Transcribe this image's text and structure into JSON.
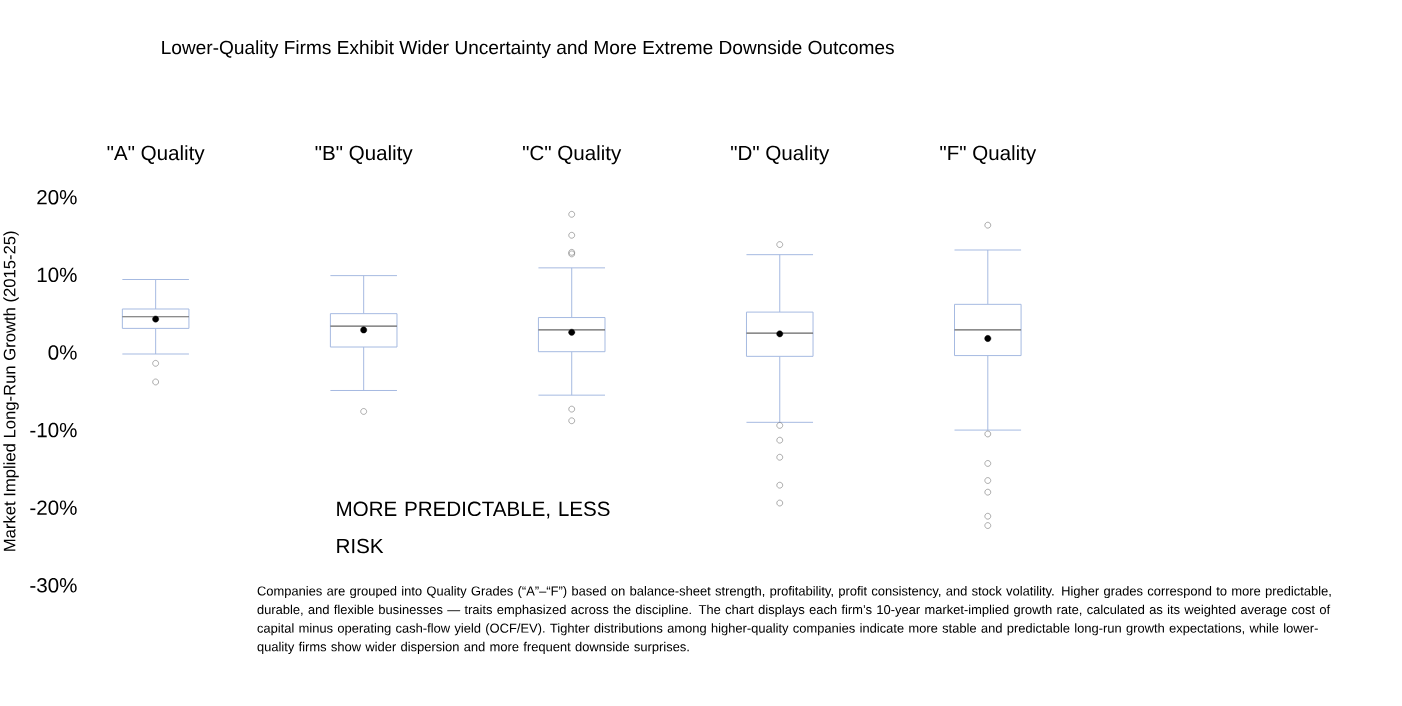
{
  "chart_data": {
    "type": "box",
    "title": "Lower-Quality Firms Exhibit Wider Uncertainty and More Extreme Downside Outcomes",
    "ylabel": "Market Implied Long-Run Growth (2015-25)",
    "categories": [
      "\"A\" Quality",
      "\"B\" Quality",
      "\"C\" Quality",
      "\"D\" Quality",
      "\"F\" Quality"
    ],
    "color": "#a4b9e0",
    "boxes": [
      {
        "low": -0.2,
        "q1": 3.1,
        "median": 4.6,
        "q3": 5.6,
        "high": 9.4,
        "mean": 4.3,
        "outliers": [
          -1.4,
          -3.8
        ]
      },
      {
        "low": -4.9,
        "q1": 0.7,
        "median": 3.4,
        "q3": 5.0,
        "high": 9.9,
        "mean": 2.9,
        "outliers": [
          -7.6
        ]
      },
      {
        "low": -5.5,
        "q1": 0.1,
        "median": 2.9,
        "q3": 4.5,
        "high": 10.9,
        "mean": 2.6,
        "outliers": [
          17.8,
          15.1,
          12.9,
          12.7,
          -7.3,
          -8.8
        ]
      },
      {
        "low": -9.0,
        "q1": -0.5,
        "median": 2.5,
        "q3": 5.2,
        "high": 12.6,
        "mean": 2.4,
        "outliers": [
          13.9,
          -9.4,
          -11.3,
          -13.5,
          -17.1,
          -19.4
        ]
      },
      {
        "low": -10.0,
        "q1": -0.4,
        "median": 2.9,
        "q3": 6.2,
        "high": 13.2,
        "mean": 1.8,
        "outliers": [
          16.4,
          -10.5,
          -14.3,
          -16.5,
          -18.0,
          -21.1,
          -22.3
        ]
      }
    ],
    "ylim": [
      -30,
      20
    ],
    "yticks": [
      {
        "value": -30,
        "label": "-30%"
      },
      {
        "value": -20,
        "label": "-20%"
      },
      {
        "value": -10,
        "label": "-10%"
      },
      {
        "value": 0,
        "label": "0%"
      },
      {
        "value": 10,
        "label": "10%"
      },
      {
        "value": 20,
        "label": "20%"
      }
    ],
    "annotations": [
      "MORE PREDICTABLE, LESS RISK",
      "Companies are grouped into Quality Grades (“A”–“F”) based on balance-sheet strength, profitability, profit consistency, and stock volatility. Higher grades correspond to more predictable, durable, and flexible businesses — traits emphasized across the discipline. The chart displays each firm’s 10-year market-implied growth rate, calculated as its weighted average cost of capital minus operating cash-flow yield (OCF/EV). Tighter distributions among higher-quality companies indicate more stable and predictable long-run growth expectations, while lower-quality firms show wider dispersion and more frequent downside surprises."
    ]
  }
}
